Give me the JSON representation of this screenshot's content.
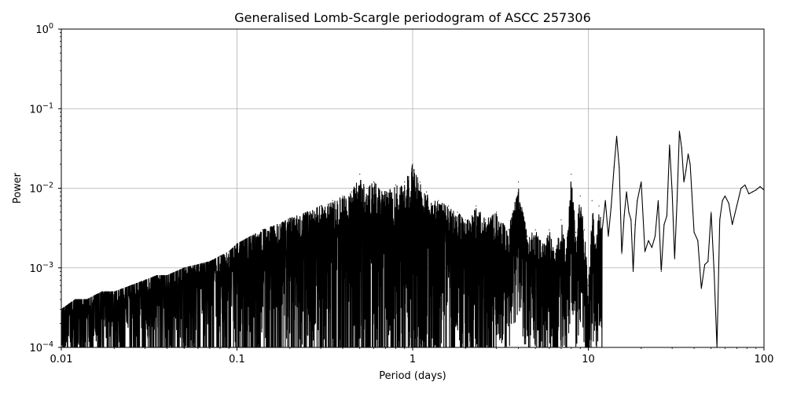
{
  "chart_data": {
    "type": "line",
    "title": "Generalised Lomb-Scargle periodogram of ASCC 257306",
    "xlabel": "Period (days)",
    "ylabel": "Power",
    "x_scale": "log",
    "y_scale": "log",
    "xlim": [
      0.01,
      100
    ],
    "ylim": [
      0.0001,
      1
    ],
    "grid": true,
    "line_color": "#000000",
    "x_ticks": [
      {
        "value": 0.01,
        "label": "0.01"
      },
      {
        "value": 0.1,
        "label": "0.1"
      },
      {
        "value": 1,
        "label": "1"
      },
      {
        "value": 10,
        "label": "10"
      },
      {
        "value": 100,
        "label": "100"
      }
    ],
    "y_ticks": [
      {
        "value": 0.0001,
        "base": "10",
        "exp": "−4"
      },
      {
        "value": 0.001,
        "base": "10",
        "exp": "−3"
      },
      {
        "value": 0.01,
        "base": "10",
        "exp": "−2"
      },
      {
        "value": 0.1,
        "base": "10",
        "exp": "−1"
      },
      {
        "value": 1,
        "base": "10",
        "exp": "0"
      }
    ],
    "series": [
      {
        "x": [
          0.01,
          0.012,
          0.014,
          0.017,
          0.02,
          0.025,
          0.03,
          0.035,
          0.04,
          0.05,
          0.06,
          0.07,
          0.08,
          0.09,
          0.1,
          0.12,
          0.14,
          0.17,
          0.2,
          0.25,
          0.3,
          0.35,
          0.4,
          0.45,
          0.5,
          0.55,
          0.6,
          0.7,
          0.8,
          0.9,
          1.0,
          1.1,
          1.2,
          1.4,
          1.6,
          1.8,
          2.0,
          2.3,
          2.6,
          3.0,
          3.5,
          4.0,
          4.5,
          5.0,
          5.5,
          6.0,
          6.5,
          7.0,
          7.5,
          8.0,
          8.5,
          9.0,
          9.5,
          10.0,
          10.5,
          11.0,
          11.5,
          12.0,
          12.5,
          13.0,
          13.5,
          14.0,
          14.5,
          15.0,
          15.5,
          16.0,
          16.5,
          17.0,
          17.5,
          18.0,
          18.5,
          19.0,
          20.0,
          21.0,
          22.0,
          23.0,
          24.0,
          25.0,
          26.0,
          27.0,
          28.0,
          29.0,
          30.0,
          31.0,
          32.0,
          33.0,
          34.0,
          35.0,
          36.0,
          37.0,
          38.0,
          40.0,
          42.0,
          44.0,
          46.0,
          48.0,
          50.0,
          52.0,
          54.0,
          56.0,
          58.0,
          60.0,
          63.0,
          66.0,
          70.0,
          74.0,
          78.0,
          82.0,
          86.0,
          90.0,
          95.0,
          100.0
        ],
        "y": [
          0.0003,
          0.0004,
          0.0004,
          0.0005,
          0.0005,
          0.0006,
          0.0007,
          0.0008,
          0.0008,
          0.001,
          0.0011,
          0.0012,
          0.0014,
          0.0016,
          0.002,
          0.0025,
          0.003,
          0.0035,
          0.0042,
          0.005,
          0.006,
          0.007,
          0.008,
          0.009,
          0.015,
          0.01,
          0.012,
          0.009,
          0.011,
          0.012,
          0.02,
          0.012,
          0.009,
          0.007,
          0.006,
          0.005,
          0.004,
          0.006,
          0.004,
          0.005,
          0.003,
          0.012,
          0.0025,
          0.003,
          0.002,
          0.003,
          0.0015,
          0.004,
          0.0017,
          0.015,
          0.0028,
          0.008,
          0.003,
          0.0006,
          0.007,
          0.002,
          0.006,
          0.003,
          0.007,
          0.0025,
          0.006,
          0.018,
          0.045,
          0.018,
          0.0015,
          0.0045,
          0.009,
          0.005,
          0.004,
          0.0009,
          0.0035,
          0.007,
          0.012,
          0.0016,
          0.0022,
          0.0018,
          0.0025,
          0.007,
          0.0009,
          0.0035,
          0.0045,
          0.035,
          0.009,
          0.0013,
          0.007,
          0.052,
          0.032,
          0.012,
          0.017,
          0.027,
          0.02,
          0.0028,
          0.0022,
          0.00055,
          0.0011,
          0.0012,
          0.005,
          0.0009,
          0.0001,
          0.004,
          0.007,
          0.008,
          0.0065,
          0.0035,
          0.006,
          0.01,
          0.011,
          0.0085,
          0.009,
          0.0095,
          0.0105,
          0.0095
        ]
      }
    ]
  }
}
